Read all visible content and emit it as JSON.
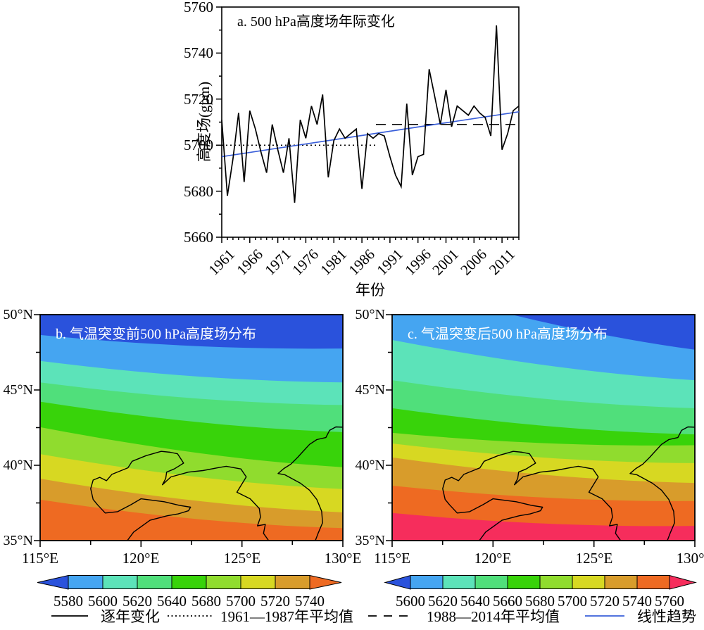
{
  "palette": {
    "frame": "#000000",
    "trend_blue": "#3A5FD9",
    "royal_blue": "#2A52DC",
    "sky_blue": "#45A5F1",
    "aquamarine": "#5CE3B9",
    "spring_green": "#50DF7B",
    "green": "#38D30A",
    "yellow_green": "#90DC2E",
    "yellow": "#D7D822",
    "goldenrod": "#D89C2B",
    "orange": "#EE6A22",
    "crimson": "#F62D5C"
  },
  "chart_data": [
    {
      "panel": "a",
      "type": "line",
      "title": "a. 500 hPa高度场年际变化",
      "xlabel": "年份",
      "ylabel": "高度场(gpm)",
      "ylim": [
        5660,
        5760
      ],
      "y_major_step": 20,
      "y_minor_step": 10,
      "y_tick_labels": [
        "5760",
        "5740",
        "5720",
        "5700",
        "5680",
        "5660"
      ],
      "x_major_ticks": [
        1961,
        1966,
        1971,
        1976,
        1981,
        1986,
        1991,
        1996,
        2001,
        2006,
        2011
      ],
      "x_tick_labels": [
        "1961",
        "1966",
        "1971",
        "1976",
        "1981",
        "1986",
        "1991",
        "1996",
        "2001",
        "2006",
        "2011"
      ],
      "year_start": 1961,
      "year_end": 2014,
      "values": [
        5711,
        5678,
        5694,
        5714,
        5684,
        5715,
        5707,
        5697,
        5688,
        5709,
        5698,
        5688,
        5703,
        5675,
        5711,
        5703,
        5717,
        5709,
        5722,
        5686,
        5702,
        5707,
        5703,
        5705,
        5707,
        5681,
        5705,
        5703,
        5705,
        5704,
        5695,
        5687,
        5682,
        5718,
        5687,
        5695,
        5696,
        5733,
        5721,
        5709,
        5724,
        5708,
        5717,
        5715,
        5713,
        5717,
        5714,
        5712,
        5704,
        5752,
        5698,
        5705,
        5715,
        5717
      ],
      "mean_before": {
        "value": 5700,
        "x_start": 1961,
        "x_end": 1988.5,
        "label": "1961—1987年平均值",
        "style": "dotted"
      },
      "mean_after": {
        "value": 5709,
        "x_start": 1988.5,
        "x_end": 2014,
        "label": "1988—2014年平均值",
        "style": "dashed"
      },
      "trend": {
        "start_value": 5695,
        "end_value": 5714.5,
        "label": "线性趋势",
        "style": "solid-blue"
      }
    },
    {
      "panel": "b",
      "type": "filled-contour",
      "title": "b. 气温突变前500 hPa高度场分布",
      "lon_range": [
        115,
        130
      ],
      "lat_range": [
        35,
        50
      ],
      "lat_tick_labels": [
        "50°N",
        "45°N",
        "40°N",
        "35°N"
      ],
      "lon_tick_labels": [
        "115°E",
        "120°E",
        "125°E",
        "130°E"
      ],
      "band_colors": [
        "#2A52DC",
        "#45A5F1",
        "#5CE3B9",
        "#50DF7B",
        "#38D30A",
        "#90DC2E",
        "#D7D822",
        "#D89C2B",
        "#EE6A22"
      ],
      "levels": [
        5580,
        5600,
        5620,
        5640,
        5680,
        5700,
        5720,
        5740
      ],
      "colorbar_labels": [
        "5580",
        "5600",
        "5620",
        "5640",
        "5680",
        "5700",
        "5720",
        "5740"
      ],
      "boundaries": [
        {
          "vl": 0.09,
          "vr": 0.15
        },
        {
          "vl": 0.205,
          "vr": 0.3
        },
        {
          "vl": 0.3,
          "vr": 0.4
        },
        {
          "vl": 0.385,
          "vr": 0.52
        },
        {
          "vl": 0.498,
          "vr": 0.675
        },
        {
          "vl": 0.617,
          "vr": 0.772
        },
        {
          "vl": 0.726,
          "vr": 0.875
        },
        {
          "vl": 0.819,
          "vr": 0.945
        }
      ]
    },
    {
      "panel": "c",
      "type": "filled-contour",
      "title": "c. 气温突变后500 hPa高度场分布",
      "lon_range": [
        115,
        130
      ],
      "lat_range": [
        35,
        50
      ],
      "lat_tick_labels": [
        "50°N",
        "45°N",
        "40°N",
        "35°N"
      ],
      "lon_tick_labels": [
        "115°E",
        "120°E",
        "125°E",
        "130°E"
      ],
      "band_colors": [
        "#2A52DC",
        "#45A5F1",
        "#5CE3B9",
        "#50DF7B",
        "#38D30A",
        "#90DC2E",
        "#D7D822",
        "#D89C2B",
        "#EE6A22",
        "#F62D5C"
      ],
      "levels": [
        5600,
        5620,
        5640,
        5660,
        5680,
        5700,
        5720,
        5740,
        5760
      ],
      "colorbar_labels": [
        "5600",
        "5620",
        "5640",
        "5660",
        "5680",
        "5700",
        "5720",
        "5740",
        "5760"
      ],
      "boundaries": [
        {
          "vl": -0.14,
          "vr": 0.155
        },
        {
          "vl": 0.112,
          "vr": 0.29
        },
        {
          "vl": 0.29,
          "vr": 0.414
        },
        {
          "vl": 0.414,
          "vr": 0.53
        },
        {
          "vl": 0.523,
          "vr": 0.578
        },
        {
          "vl": 0.57,
          "vr": 0.657
        },
        {
          "vl": 0.632,
          "vr": 0.745
        },
        {
          "vl": 0.757,
          "vr": 0.825
        },
        {
          "vl": 0.878,
          "vr": 0.935
        }
      ]
    }
  ],
  "legend": {
    "items": [
      {
        "style": "solid-black",
        "label": "逐年变化"
      },
      {
        "style": "dotted-black",
        "label": "1961—1987年平均值"
      },
      {
        "style": "dashed-black",
        "label": "1988—2014年平均值"
      },
      {
        "style": "solid-blue",
        "label": "线性趋势"
      }
    ]
  }
}
